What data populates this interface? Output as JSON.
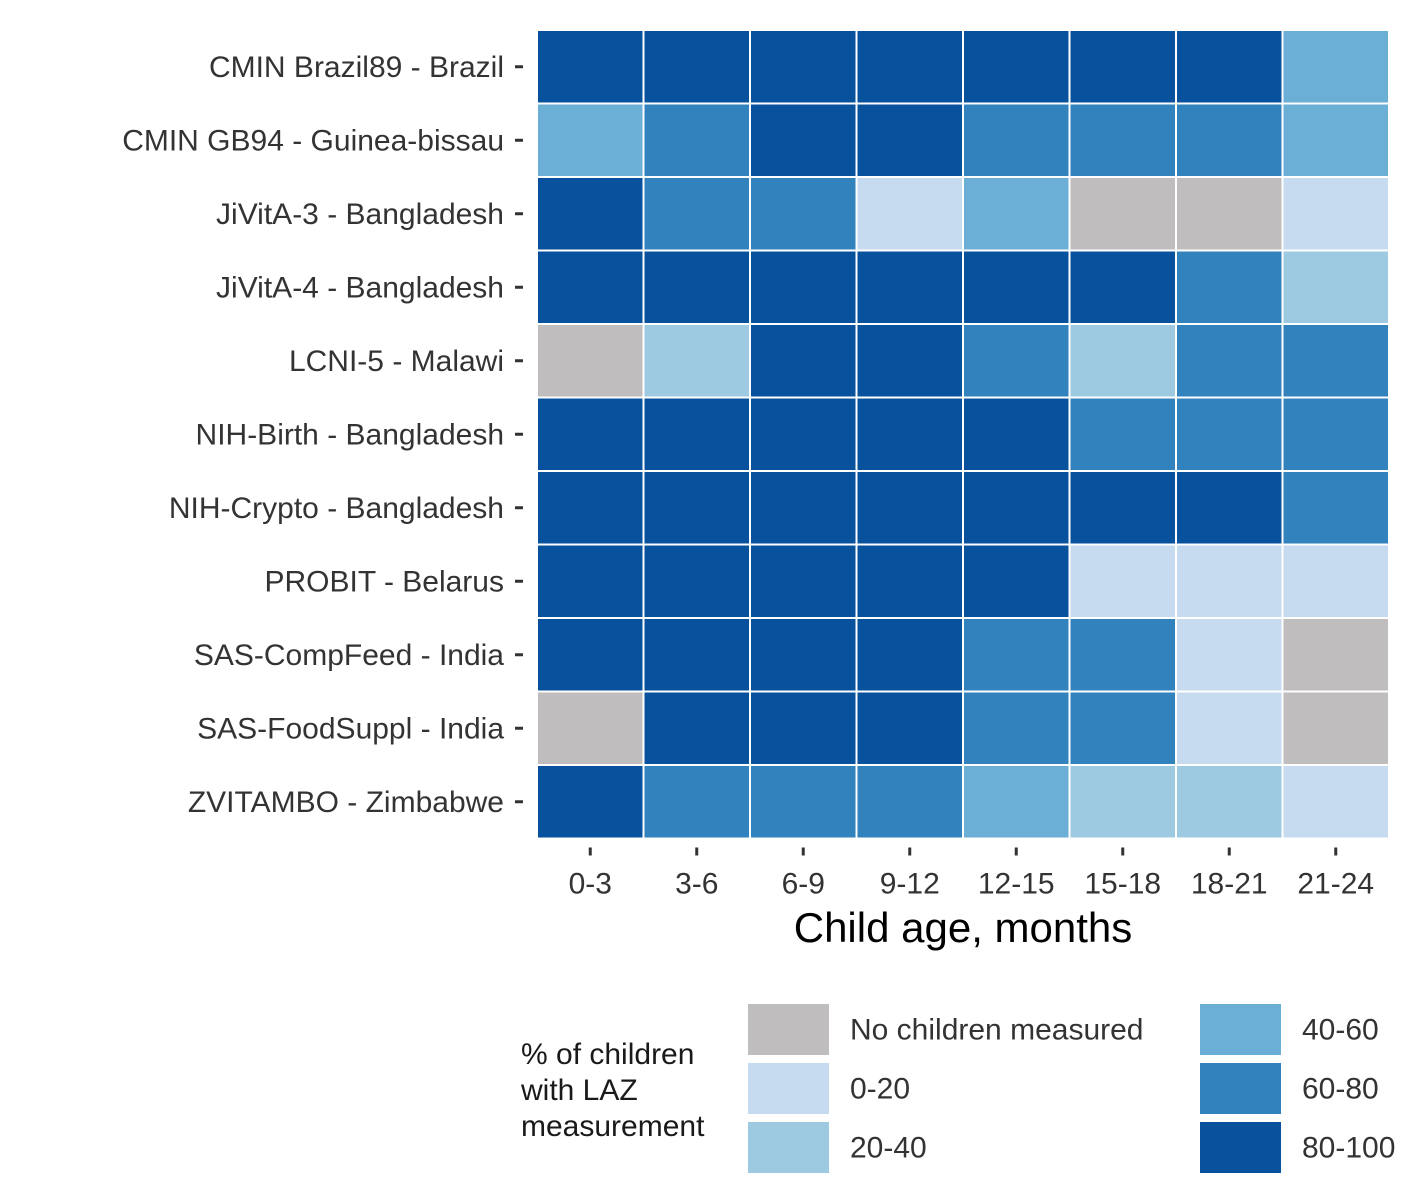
{
  "chart_data": {
    "type": "heatmap",
    "xlabel": "Child age, months",
    "x_categories": [
      "0-3",
      "3-6",
      "6-9",
      "9-12",
      "12-15",
      "15-18",
      "18-21",
      "21-24"
    ],
    "y_categories": [
      "CMIN Brazil89 - Brazil",
      "CMIN GB94 - Guinea-bissau",
      "JiVitA-3 - Bangladesh",
      "JiVitA-4 - Bangladesh",
      "LCNI-5 - Malawi",
      "NIH-Birth - Bangladesh",
      "NIH-Crypto - Bangladesh",
      "PROBIT - Belarus",
      "SAS-CompFeed - India",
      "SAS-FoodSuppl - India",
      "ZVITAMBO - Zimbabwe"
    ],
    "values": [
      [
        "80-100",
        "80-100",
        "80-100",
        "80-100",
        "80-100",
        "80-100",
        "80-100",
        "40-60"
      ],
      [
        "40-60",
        "60-80",
        "80-100",
        "80-100",
        "60-80",
        "60-80",
        "60-80",
        "40-60"
      ],
      [
        "80-100",
        "60-80",
        "60-80",
        "0-20",
        "40-60",
        "No children measured",
        "No children measured",
        "0-20"
      ],
      [
        "80-100",
        "80-100",
        "80-100",
        "80-100",
        "80-100",
        "80-100",
        "60-80",
        "20-40"
      ],
      [
        "No children measured",
        "20-40",
        "80-100",
        "80-100",
        "60-80",
        "20-40",
        "60-80",
        "60-80"
      ],
      [
        "80-100",
        "80-100",
        "80-100",
        "80-100",
        "80-100",
        "60-80",
        "60-80",
        "60-80"
      ],
      [
        "80-100",
        "80-100",
        "80-100",
        "80-100",
        "80-100",
        "80-100",
        "80-100",
        "60-80"
      ],
      [
        "80-100",
        "80-100",
        "80-100",
        "80-100",
        "80-100",
        "0-20",
        "0-20",
        "0-20"
      ],
      [
        "80-100",
        "80-100",
        "80-100",
        "80-100",
        "60-80",
        "60-80",
        "0-20",
        "No children measured"
      ],
      [
        "No children measured",
        "80-100",
        "80-100",
        "80-100",
        "60-80",
        "60-80",
        "0-20",
        "No children measured"
      ],
      [
        "80-100",
        "60-80",
        "60-80",
        "60-80",
        "40-60",
        "20-40",
        "20-40",
        "0-20"
      ]
    ],
    "legend": {
      "title": "% of children with LAZ measurement",
      "title_lines": [
        "% of children",
        "with LAZ",
        "measurement"
      ],
      "position": "bottom",
      "items": [
        {
          "label": "No children measured",
          "color": "#bfbdbe"
        },
        {
          "label": "0-20",
          "color": "#c6dbef"
        },
        {
          "label": "20-40",
          "color": "#9ecae1"
        },
        {
          "label": "40-60",
          "color": "#6baed6"
        },
        {
          "label": "60-80",
          "color": "#3182bd"
        },
        {
          "label": "80-100",
          "color": "#08519c"
        }
      ]
    },
    "grid": false
  }
}
